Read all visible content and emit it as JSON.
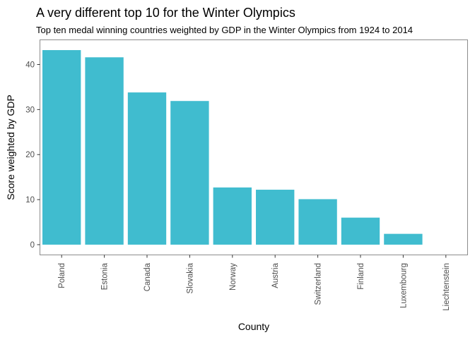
{
  "colors": {
    "bar": "#40bccf",
    "panel_border": "#8c8c8c",
    "tick_text": "#4d4d4d"
  },
  "chart_data": {
    "type": "bar",
    "title": "A very different top 10 for the Winter Olympics",
    "subtitle": "Top ten medal winning countries weighted by GDP in the Winter Olympics from 1924 to 2014",
    "xlabel": "County",
    "ylabel": "Score weighted by GDP",
    "categories": [
      "Poland",
      "Estonia",
      "Canada",
      "Slovakia",
      "Norway",
      "Austria",
      "Switzerland",
      "Finland",
      "Luxembourg",
      "Liechtenstein"
    ],
    "values": [
      43.2,
      41.6,
      33.8,
      31.9,
      12.7,
      12.2,
      10.1,
      6.0,
      2.4,
      0
    ],
    "ylim": [
      -2.2,
      45.4
    ],
    "yticks": [
      0,
      10,
      20,
      30,
      40
    ],
    "grid": false,
    "legend": "none"
  }
}
